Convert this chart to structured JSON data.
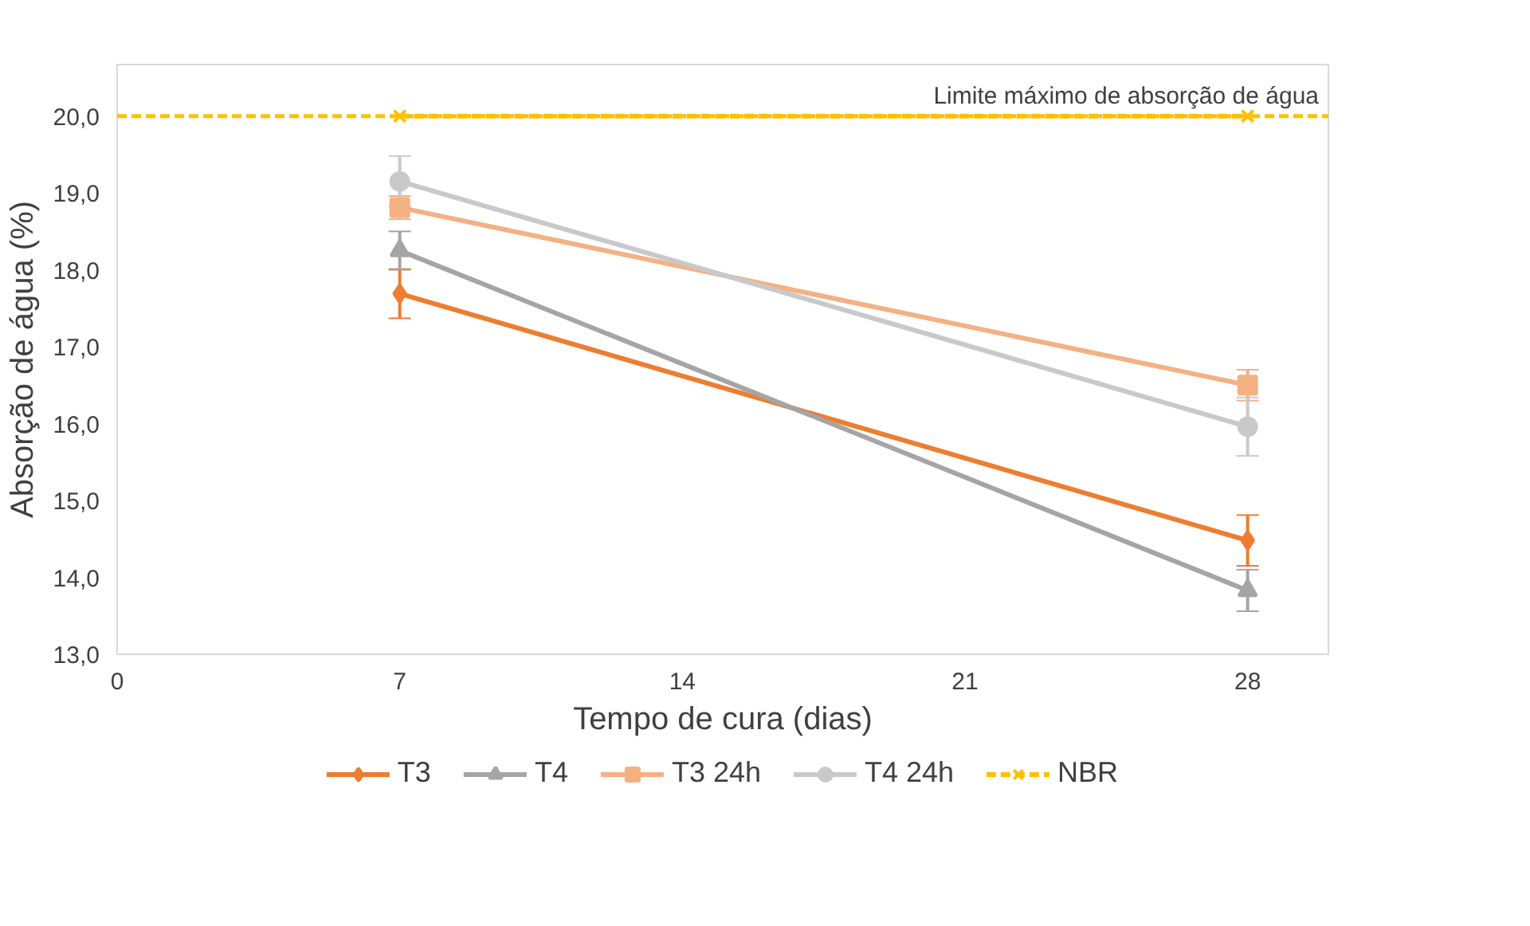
{
  "chart_data": {
    "type": "line",
    "xlabel": "Tempo de cura (dias)",
    "ylabel": "Absorção de água (%)",
    "x": [
      7,
      28
    ],
    "series": [
      {
        "name": "T3",
        "color": "#ed7d31",
        "marker": "diamond",
        "values": [
          17.69,
          14.48
        ],
        "errors": [
          0.32,
          0.33
        ]
      },
      {
        "name": "T4",
        "color": "#a5a5a5",
        "marker": "triangle",
        "values": [
          18.25,
          13.83
        ],
        "errors": [
          0.25,
          0.27
        ]
      },
      {
        "name": "T3 24h",
        "color": "#f4b183",
        "marker": "square",
        "values": [
          18.81,
          16.5
        ],
        "errors": [
          0.15,
          0.2
        ]
      },
      {
        "name": "T4 24h",
        "color": "#c9c9c9",
        "marker": "circle",
        "values": [
          19.15,
          15.96
        ],
        "errors": [
          0.33,
          0.38
        ]
      },
      {
        "name": "NBR",
        "color": "#ffc000",
        "marker": "cross",
        "line_style": "dashed",
        "values": [
          20.0,
          20.0
        ]
      }
    ],
    "ref_lines": [
      {
        "axis": "y",
        "value": 20.0,
        "label": "Limite máximo de absorção de água",
        "color": "#ffc000",
        "line_style": "dashed"
      }
    ],
    "xlim": [
      0,
      30
    ],
    "xticks": [
      0,
      7,
      14,
      21,
      28
    ],
    "ylim": [
      13,
      20.67
    ],
    "yticks": [
      {
        "value": 13,
        "label": "13,0"
      },
      {
        "value": 14,
        "label": "14,0"
      },
      {
        "value": 15,
        "label": "15,0"
      },
      {
        "value": 16,
        "label": "16,0"
      },
      {
        "value": 17,
        "label": "17,0"
      },
      {
        "value": 18,
        "label": "18,0"
      },
      {
        "value": 19,
        "label": "19,0"
      },
      {
        "value": 20,
        "label": "20,0"
      }
    ],
    "grid": false,
    "legend": "bottom"
  }
}
